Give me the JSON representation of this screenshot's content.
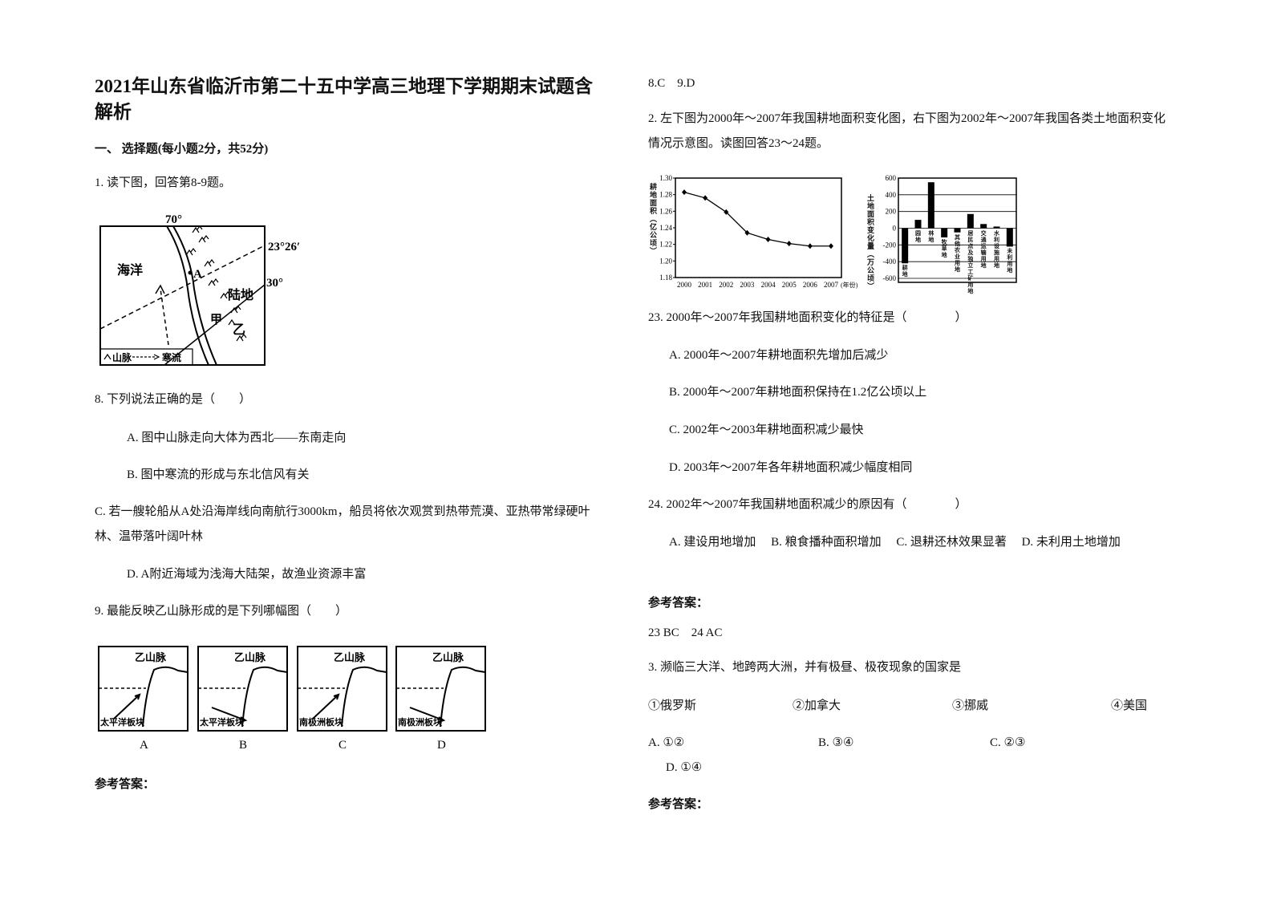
{
  "title": "2021年山东省临沂市第二十五中学高三地理下学期期末试题含解析",
  "left": {
    "section": "一、 选择题(每小题2分，共52分)",
    "q1": "1. 读下图，回答第8-9题。",
    "map": {
      "lon": "70°",
      "lat1": "23°26′",
      "lat2": "30°",
      "ocean": "海洋",
      "point": "A",
      "land": "陆地",
      "jia": "甲",
      "yi": "乙",
      "legend_mountain": "山脉",
      "legend_current": "寒流"
    },
    "q8": {
      "stem": "8. 下列说法正确的是（　　）",
      "options": [
        "A. 图中山脉走向大体为西北——东南走向",
        "B. 图中寒流的形成与东北信风有关",
        "C. 若一艘轮船从A处沿海岸线向南航行3000km，船员将依次观赏到热带荒漠、亚热带常绿硬叶林、温带落叶阔叶林",
        "D. A附近海域为浅海大陆架，故渔业资源丰富"
      ]
    },
    "q9": {
      "stem": "9. 最能反映乙山脉形成的是下列哪幅图（　　）",
      "panels": [
        {
          "mountain": "乙山脉",
          "plate": "太平洋板块",
          "label": "A"
        },
        {
          "mountain": "乙山脉",
          "plate": "太平洋板块",
          "label": "B"
        },
        {
          "mountain": "乙山脉",
          "plate": "南极洲板块",
          "label": "C"
        },
        {
          "mountain": "乙山脉",
          "plate": "南极洲板块",
          "label": "D"
        }
      ]
    },
    "answer_heading": "参考答案："
  },
  "right": {
    "answer1": "8.C　9.D",
    "q2": "2. 左下图为2000年～2007年我国耕地面积变化图，右下图为2002年～2007年我国各类土地面积变化情况示意图。读图回答23～24题。",
    "line": {
      "type": "line",
      "ylabel": "耕地面积（亿公顷）",
      "xlabel": "(年份)",
      "x": [
        2000,
        2001,
        2002,
        2003,
        2004,
        2005,
        2006,
        2007
      ],
      "values": [
        1.283,
        1.276,
        1.259,
        1.234,
        1.226,
        1.221,
        1.218,
        1.218
      ],
      "ylim": [
        1.18,
        1.3
      ],
      "yticks": [
        {
          "value": 1.3,
          "label": "1.30"
        },
        1.28,
        1.26,
        1.24,
        1.22,
        {
          "value": 1.2,
          "label": "1.20"
        },
        1.18
      ]
    },
    "bar": {
      "type": "bar",
      "ylabel": "土地面积变化量（万公顷）",
      "categories": [
        "耕地",
        "园地",
        "林地",
        "牧草地",
        "其他农业用地",
        "居民点及独立工矿用地",
        "交通运输用地",
        "水利设施用地",
        "未利用地"
      ],
      "values": [
        -420,
        100,
        550,
        -110,
        -50,
        170,
        50,
        20,
        -220
      ],
      "ylim": [
        -600,
        600
      ],
      "yticks": [
        600,
        400,
        200,
        0,
        -200,
        -400,
        -600
      ]
    },
    "q23": {
      "stem": "23. 2000年～2007年我国耕地面积变化的特征是（　　　　）",
      "options": [
        "A. 2000年～2007年耕地面积先增加后减少",
        "B. 2000年～2007年耕地面积保持在1.2亿公顷以上",
        "C. 2002年～2003年耕地面积减少最快",
        "D. 2003年～2007年各年耕地面积减少幅度相同"
      ]
    },
    "q24": {
      "stem": "24. 2002年～2007年我国耕地面积减少的原因有（　　　　）",
      "options": "A. 建设用地增加　 B. 粮食播种面积增加　 C. 退耕还林效果显著　 D. 未利用土地增加"
    },
    "answer_heading": "参考答案：",
    "answer2": "23 BC　24 AC",
    "q3": {
      "stem": "3. 濒临三大洋、地跨两大洲，并有极昼、极夜现象的国家是",
      "items": [
        "①俄罗斯",
        "②加拿大",
        "③挪威",
        "④美国"
      ],
      "options": [
        "A. ①②",
        "B. ③④",
        "C. ②③",
        "D. ①④"
      ]
    },
    "answer_heading2": "参考答案："
  }
}
